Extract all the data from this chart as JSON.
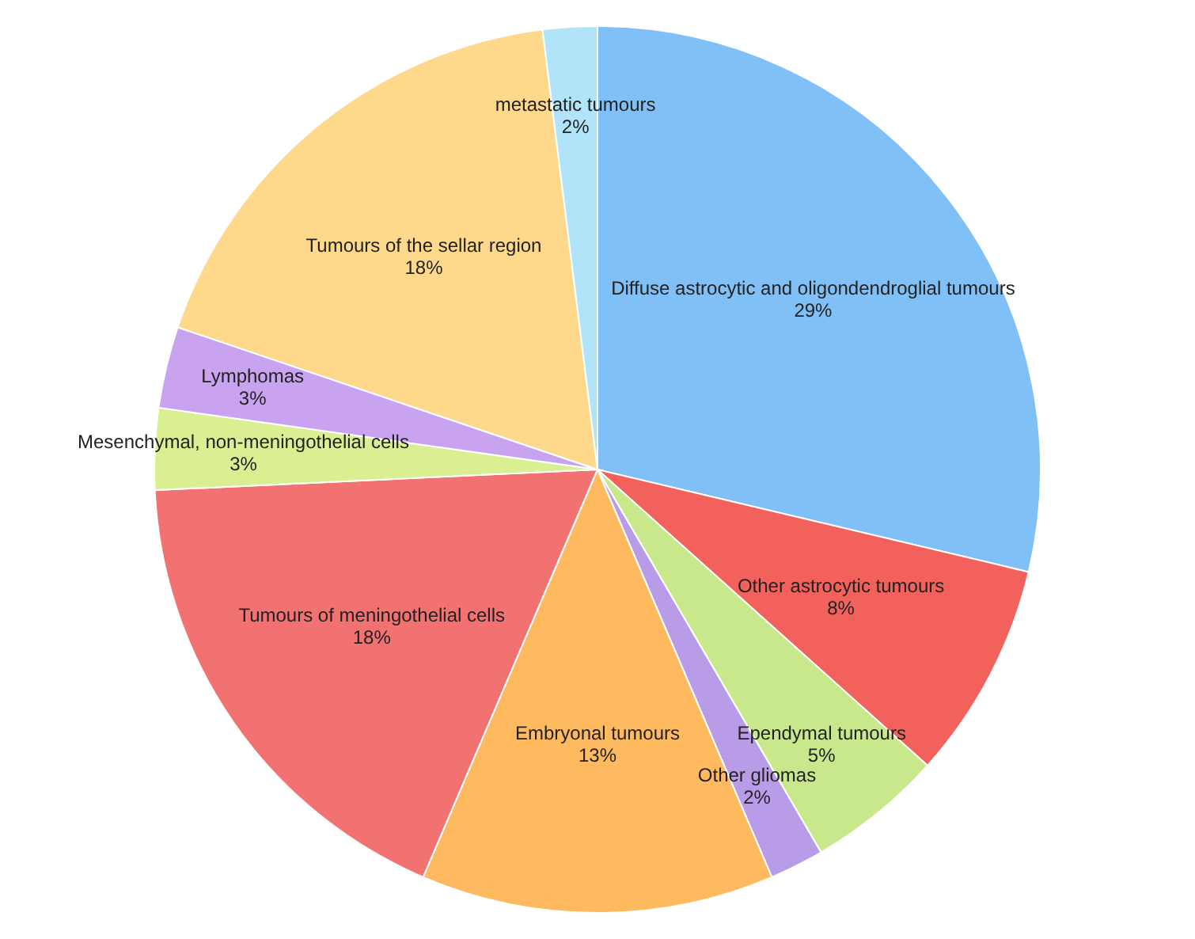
{
  "chart_data": {
    "type": "pie",
    "categories": [
      "Diffuse astrocytic and oligondendroglial tumours",
      "Other astrocytic tumours",
      "Ependymal tumours",
      "Other gliomas",
      "Embryonal tumours",
      "Tumours of meningothelial cells",
      "Mesenchymal, non-meningothelial cells",
      "Lymphomas",
      "Tumours of the sellar region",
      "metastatic tumours"
    ],
    "values": [
      29,
      8,
      5,
      2,
      13,
      18,
      3,
      3,
      18,
      2
    ],
    "value_labels": [
      "29%",
      "8%",
      "5%",
      "2%",
      "13%",
      "18%",
      "3%",
      "3%",
      "18%",
      "2%"
    ],
    "colors": [
      "#80c0f6",
      "#f2615c",
      "#c9e88c",
      "#b99ce8",
      "#ffb95f",
      "#f27272",
      "#d9ef92",
      "#c9a2f0",
      "#ffd98b",
      "#b1e4f8"
    ],
    "legend": false
  }
}
